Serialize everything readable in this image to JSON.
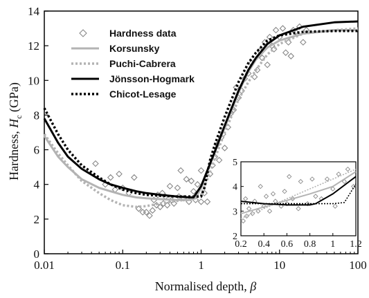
{
  "chart_data": [
    {
      "type": "scatter+line",
      "xlabel_text": "Normalised depth, ",
      "xlabel_symbol": "β",
      "ylabel_text": "Hardness, ",
      "ylabel_symbol": "H",
      "ylabel_subscript": "c",
      "ylabel_unit": " (GPa)",
      "xscale": "log",
      "xlim": [
        0.01,
        100
      ],
      "ylim": [
        0,
        14
      ],
      "xticks": [
        0.01,
        0.1,
        1,
        10,
        100
      ],
      "xtick_labels": [
        "0.01",
        "0.1",
        "1",
        "10",
        "100"
      ],
      "yticks": [
        0,
        2,
        4,
        6,
        8,
        10,
        12,
        14
      ],
      "ytick_labels": [
        "0",
        "2",
        "4",
        "6",
        "8",
        "10",
        "12",
        "14"
      ],
      "legend_position": "top-left",
      "colors": {
        "data": "#888888",
        "korsunsky": "#b3b3b3",
        "puchi": "#b3b3b3",
        "jonsson": "#000000",
        "chicot": "#000000"
      },
      "series": [
        {
          "name": "Hardness data",
          "style": "diamond-markers",
          "points": [
            [
              0.045,
              5.2
            ],
            [
              0.06,
              4.0
            ],
            [
              0.07,
              4.4
            ],
            [
              0.08,
              3.7
            ],
            [
              0.09,
              4.6
            ],
            [
              0.1,
              3.8
            ],
            [
              0.12,
              3.5
            ],
            [
              0.14,
              4.4
            ],
            [
              0.16,
              2.6
            ],
            [
              0.18,
              2.4
            ],
            [
              0.2,
              2.4
            ],
            [
              0.22,
              2.2
            ],
            [
              0.24,
              2.5
            ],
            [
              0.25,
              3.1
            ],
            [
              0.27,
              2.8
            ],
            [
              0.28,
              3.4
            ],
            [
              0.3,
              2.7
            ],
            [
              0.32,
              3.5
            ],
            [
              0.33,
              2.9
            ],
            [
              0.35,
              3.3
            ],
            [
              0.37,
              2.8
            ],
            [
              0.4,
              3.9
            ],
            [
              0.42,
              3.1
            ],
            [
              0.45,
              2.9
            ],
            [
              0.5,
              3.8
            ],
            [
              0.52,
              3.3
            ],
            [
              0.55,
              4.8
            ],
            [
              0.6,
              3.2
            ],
            [
              0.65,
              4.3
            ],
            [
              0.7,
              3.0
            ],
            [
              0.75,
              4.2
            ],
            [
              0.8,
              3.6
            ],
            [
              0.85,
              3.1
            ],
            [
              0.9,
              4.0
            ],
            [
              1.0,
              3.0
            ],
            [
              1.0,
              4.8
            ],
            [
              1.1,
              3.5
            ],
            [
              1.2,
              3.0
            ],
            [
              1.3,
              4.6
            ],
            [
              1.4,
              5.1
            ],
            [
              1.5,
              5.6
            ],
            [
              1.6,
              6.3
            ],
            [
              1.7,
              5.4
            ],
            [
              1.8,
              6.7
            ],
            [
              1.9,
              6.9
            ],
            [
              2.0,
              6.1
            ],
            [
              2.2,
              7.3
            ],
            [
              2.4,
              8.1
            ],
            [
              2.6,
              8.3
            ],
            [
              2.8,
              9.6
            ],
            [
              3.0,
              9.0
            ],
            [
              3.3,
              9.4
            ],
            [
              3.6,
              10.1
            ],
            [
              4.0,
              10.4
            ],
            [
              4.4,
              11.0
            ],
            [
              4.8,
              10.2
            ],
            [
              5.2,
              10.6
            ],
            [
              5.6,
              11.7
            ],
            [
              6.0,
              11.3
            ],
            [
              6.5,
              12.2
            ],
            [
              7.0,
              10.9
            ],
            [
              7.5,
              12.5
            ],
            [
              8.0,
              12.0
            ],
            [
              8.5,
              11.8
            ],
            [
              9.0,
              12.9
            ],
            [
              10.0,
              12.5
            ],
            [
              11.0,
              13.0
            ],
            [
              12.0,
              11.6
            ],
            [
              13.0,
              12.2
            ],
            [
              14.0,
              11.4
            ],
            [
              15.0,
              12.9
            ],
            [
              16.0,
              12.8
            ],
            [
              18.0,
              13.1
            ],
            [
              20.0,
              12.2
            ],
            [
              22.0,
              12.9
            ]
          ]
        },
        {
          "name": "Korsunsky",
          "style": "solid-gray",
          "points": [
            [
              0.01,
              6.8
            ],
            [
              0.015,
              5.6
            ],
            [
              0.02,
              5.0
            ],
            [
              0.03,
              4.3
            ],
            [
              0.05,
              3.8
            ],
            [
              0.07,
              3.6
            ],
            [
              0.1,
              3.4
            ],
            [
              0.15,
              3.25
            ],
            [
              0.2,
              3.2
            ],
            [
              0.3,
              3.15
            ],
            [
              0.5,
              3.1
            ],
            [
              0.7,
              3.1
            ],
            [
              0.85,
              3.2
            ],
            [
              1.0,
              3.8
            ],
            [
              1.2,
              4.8
            ],
            [
              1.5,
              5.9
            ],
            [
              2.0,
              7.3
            ],
            [
              3.0,
              9.3
            ],
            [
              4.0,
              10.5
            ],
            [
              5.0,
              11.2
            ],
            [
              7.0,
              11.9
            ],
            [
              10.0,
              12.3
            ],
            [
              20.0,
              12.7
            ],
            [
              50.0,
              12.9
            ],
            [
              100.0,
              12.9
            ]
          ]
        },
        {
          "name": "Puchi-Cabrera",
          "style": "dotted-gray",
          "points": [
            [
              0.01,
              6.9
            ],
            [
              0.015,
              5.8
            ],
            [
              0.02,
              5.1
            ],
            [
              0.03,
              4.2
            ],
            [
              0.05,
              3.5
            ],
            [
              0.07,
              3.1
            ],
            [
              0.1,
              2.8
            ],
            [
              0.15,
              2.7
            ],
            [
              0.2,
              2.75
            ],
            [
              0.3,
              2.9
            ],
            [
              0.5,
              3.05
            ],
            [
              0.7,
              3.15
            ],
            [
              1.0,
              3.4
            ],
            [
              1.2,
              4.3
            ],
            [
              1.5,
              5.5
            ],
            [
              2.0,
              7.0
            ],
            [
              3.0,
              8.9
            ],
            [
              4.0,
              9.9
            ],
            [
              5.0,
              10.6
            ],
            [
              7.0,
              11.5
            ],
            [
              10.0,
              12.1
            ],
            [
              20.0,
              12.7
            ],
            [
              50.0,
              12.9
            ],
            [
              100.0,
              13.0
            ]
          ]
        },
        {
          "name": "Jönsson-Hogmark",
          "style": "solid-black",
          "points": [
            [
              0.01,
              7.8
            ],
            [
              0.015,
              6.4
            ],
            [
              0.02,
              5.6
            ],
            [
              0.03,
              4.9
            ],
            [
              0.05,
              4.3
            ],
            [
              0.07,
              4.0
            ],
            [
              0.1,
              3.8
            ],
            [
              0.15,
              3.6
            ],
            [
              0.2,
              3.5
            ],
            [
              0.3,
              3.4
            ],
            [
              0.5,
              3.3
            ],
            [
              0.7,
              3.25
            ],
            [
              0.8,
              3.25
            ],
            [
              1.0,
              3.9
            ],
            [
              1.2,
              4.8
            ],
            [
              1.5,
              5.9
            ],
            [
              2.0,
              7.4
            ],
            [
              3.0,
              9.4
            ],
            [
              4.0,
              10.6
            ],
            [
              5.0,
              11.3
            ],
            [
              7.0,
              12.1
            ],
            [
              10.0,
              12.6
            ],
            [
              20.0,
              13.1
            ],
            [
              50.0,
              13.35
            ],
            [
              100.0,
              13.4
            ]
          ]
        },
        {
          "name": "Chicot-Lesage",
          "style": "dotted-black",
          "points": [
            [
              0.01,
              8.4
            ],
            [
              0.015,
              6.9
            ],
            [
              0.02,
              6.0
            ],
            [
              0.03,
              5.1
            ],
            [
              0.05,
              4.4
            ],
            [
              0.07,
              4.0
            ],
            [
              0.1,
              3.7
            ],
            [
              0.15,
              3.5
            ],
            [
              0.2,
              3.4
            ],
            [
              0.3,
              3.35
            ],
            [
              0.5,
              3.3
            ],
            [
              0.7,
              3.3
            ],
            [
              1.0,
              3.3
            ],
            [
              1.1,
              3.8
            ],
            [
              1.3,
              5.4
            ],
            [
              1.5,
              6.3
            ],
            [
              2.0,
              7.9
            ],
            [
              3.0,
              9.9
            ],
            [
              4.0,
              11.0
            ],
            [
              5.0,
              11.6
            ],
            [
              7.0,
              12.3
            ],
            [
              10.0,
              12.6
            ],
            [
              20.0,
              12.8
            ],
            [
              50.0,
              12.85
            ],
            [
              100.0,
              12.85
            ]
          ]
        }
      ]
    },
    {
      "type": "scatter+line",
      "role": "inset",
      "xscale": "linear",
      "xlim": [
        0.2,
        1.2
      ],
      "ylim": [
        2,
        5
      ],
      "xticks": [
        0.2,
        0.4,
        0.6,
        0.8,
        1.0,
        1.2
      ],
      "xtick_labels": [
        "0.2",
        "0.4",
        "0.6",
        "0.8",
        "1",
        "1.2"
      ],
      "yticks": [
        2,
        3,
        4,
        5
      ],
      "ytick_labels": [
        "2",
        "3",
        "4",
        "5"
      ],
      "series": [
        {
          "name": "Hardness data",
          "style": "diamond-markers",
          "points": [
            [
              0.22,
              2.6
            ],
            [
              0.24,
              3.5
            ],
            [
              0.25,
              2.8
            ],
            [
              0.27,
              3.1
            ],
            [
              0.3,
              2.9
            ],
            [
              0.32,
              3.4
            ],
            [
              0.35,
              3.0
            ],
            [
              0.37,
              4.0
            ],
            [
              0.4,
              3.2
            ],
            [
              0.42,
              3.6
            ],
            [
              0.45,
              3.0
            ],
            [
              0.48,
              3.7
            ],
            [
              0.5,
              3.4
            ],
            [
              0.55,
              3.2
            ],
            [
              0.58,
              3.8
            ],
            [
              0.6,
              3.3
            ],
            [
              0.62,
              4.4
            ],
            [
              0.65,
              3.5
            ],
            [
              0.7,
              3.1
            ],
            [
              0.72,
              4.2
            ],
            [
              0.78,
              3.3
            ],
            [
              0.82,
              4.3
            ],
            [
              0.85,
              3.6
            ],
            [
              0.9,
              3.5
            ],
            [
              0.95,
              4.3
            ],
            [
              1.0,
              3.9
            ],
            [
              1.02,
              3.2
            ],
            [
              1.05,
              4.5
            ],
            [
              1.1,
              4.2
            ],
            [
              1.13,
              4.7
            ],
            [
              1.18,
              4.0
            ]
          ]
        },
        {
          "name": "Korsunsky",
          "style": "solid-gray",
          "points": [
            [
              0.2,
              2.9
            ],
            [
              0.5,
              3.3
            ],
            [
              0.8,
              3.7
            ],
            [
              1.0,
              4.0
            ],
            [
              1.2,
              4.6
            ]
          ]
        },
        {
          "name": "Puchi-Cabrera",
          "style": "dotted-gray",
          "points": [
            [
              0.2,
              2.7
            ],
            [
              0.5,
              3.3
            ],
            [
              0.8,
              3.9
            ],
            [
              1.0,
              4.3
            ],
            [
              1.2,
              4.7
            ]
          ]
        },
        {
          "name": "Jönsson-Hogmark",
          "style": "solid-black",
          "points": [
            [
              0.2,
              3.4
            ],
            [
              0.4,
              3.3
            ],
            [
              0.6,
              3.25
            ],
            [
              0.8,
              3.25
            ],
            [
              0.85,
              3.3
            ],
            [
              1.0,
              3.7
            ],
            [
              1.2,
              4.4
            ]
          ]
        },
        {
          "name": "Chicot-Lesage",
          "style": "dotted-black",
          "points": [
            [
              0.2,
              3.3
            ],
            [
              0.5,
              3.3
            ],
            [
              0.8,
              3.3
            ],
            [
              1.0,
              3.3
            ],
            [
              1.1,
              3.35
            ],
            [
              1.2,
              4.1
            ]
          ]
        }
      ]
    }
  ]
}
